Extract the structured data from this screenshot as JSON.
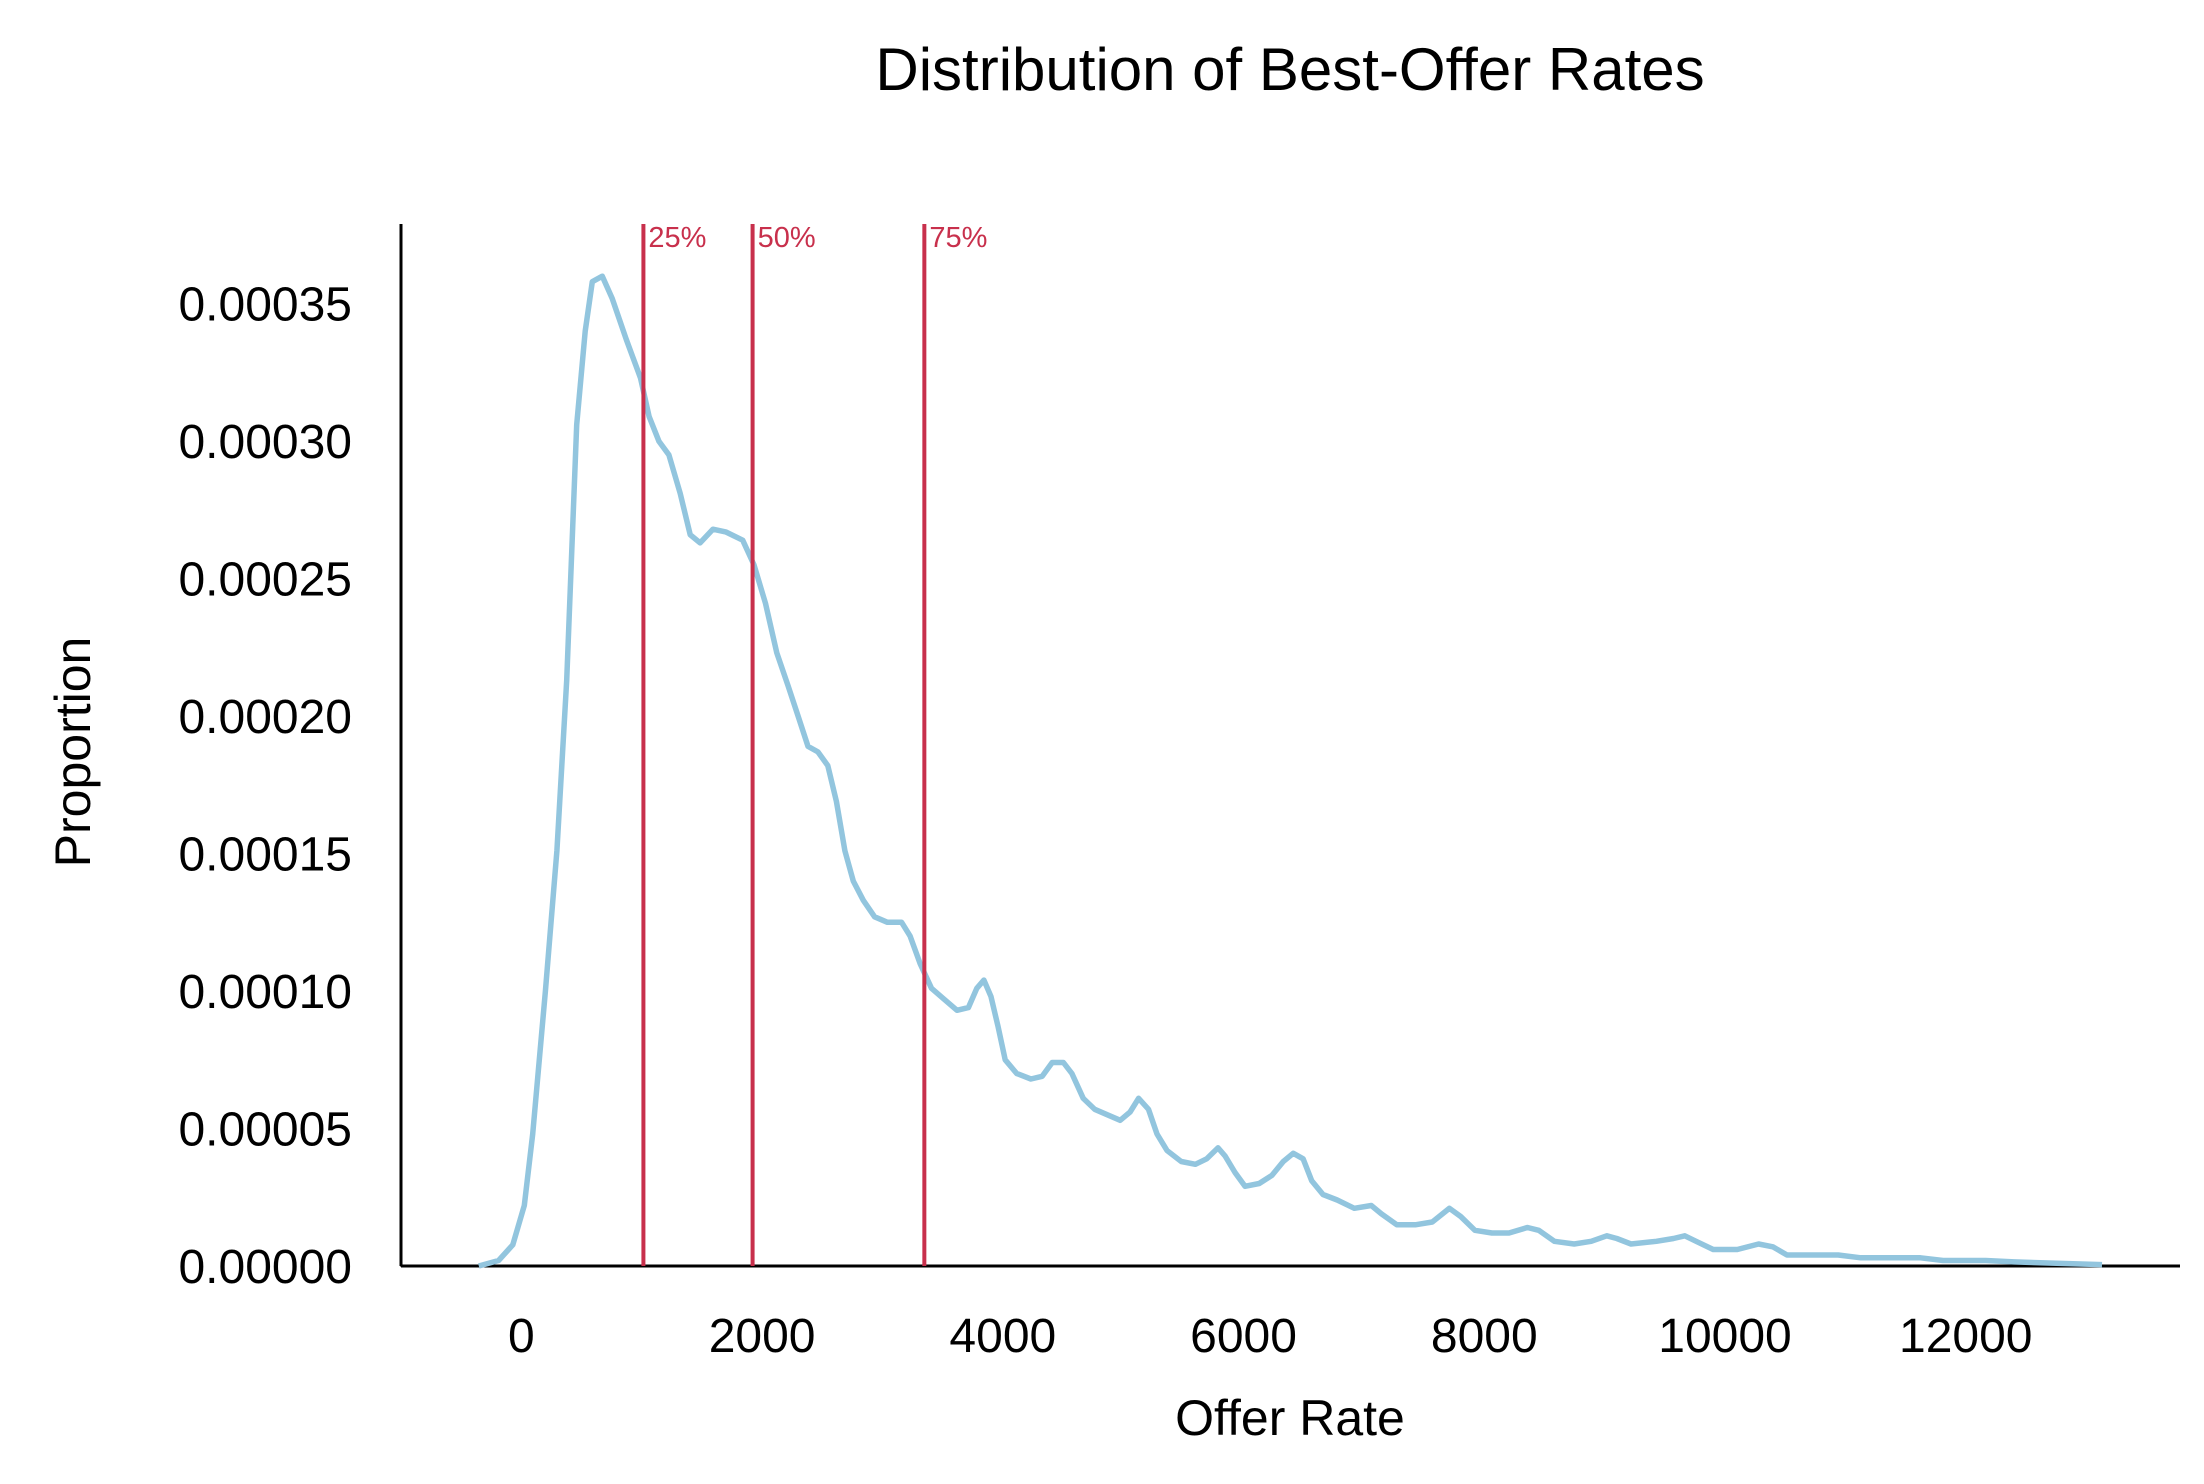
{
  "chart_data": {
    "type": "line",
    "title": "Distribution of Best-Offer Rates",
    "x_label": "Offer Rate",
    "y_label": "Proportion",
    "color": "#92c5de",
    "percentile_color": "#c8304c",
    "xlim": [
      -1000,
      13780
    ],
    "ylim": [
      0,
      0.000379
    ],
    "xticks": [
      0,
      2000,
      4000,
      6000,
      8000,
      10000,
      12000
    ],
    "yticks": [
      {
        "value": 0,
        "label": "0.00000"
      },
      {
        "value": 5e-05,
        "label": "0.00005"
      },
      {
        "value": 0.0001,
        "label": "0.00010"
      },
      {
        "value": 0.00015,
        "label": "0.00015"
      },
      {
        "value": 0.0002,
        "label": "0.00020"
      },
      {
        "value": 0.00025,
        "label": "0.00025"
      },
      {
        "value": 0.0003,
        "label": "0.00030"
      },
      {
        "value": 0.00035,
        "label": "0.00035"
      }
    ],
    "percentiles": [
      {
        "label": "25%",
        "value": 1014
      },
      {
        "label": "50%",
        "value": 1921
      },
      {
        "label": "75%",
        "value": 3348
      }
    ],
    "x": [
      -354,
      -189,
      -71,
      24,
      94,
      200,
      295,
      377,
      460,
      530,
      589,
      672,
      754,
      872,
      990,
      1061,
      1143,
      1226,
      1320,
      1403,
      1485,
      1591,
      1698,
      1839,
      1933,
      2028,
      2122,
      2216,
      2299,
      2381,
      2464,
      2546,
      2617,
      2688,
      2758,
      2841,
      2935,
      3041,
      3159,
      3230,
      3313,
      3407,
      3513,
      3619,
      3714,
      3784,
      3843,
      3902,
      3961,
      4020,
      4115,
      4233,
      4327,
      4410,
      4503,
      4574,
      4668,
      4763,
      4869,
      4975,
      5057,
      5128,
      5210,
      5281,
      5364,
      5482,
      5600,
      5694,
      5788,
      5847,
      5929,
      6012,
      6130,
      6236,
      6330,
      6413,
      6495,
      6566,
      6660,
      6778,
      6920,
      7061,
      7144,
      7273,
      7427,
      7568,
      7710,
      7804,
      7922,
      8063,
      8205,
      8358,
      8452,
      8582,
      8747,
      8888,
      9018,
      9101,
      9219,
      9430,
      9572,
      9666,
      9760,
      9902,
      10102,
      10279,
      10397,
      10515,
      10751,
      10940,
      11128,
      11458,
      11623,
      11812,
      12166,
      12401,
      12755,
      13132
    ],
    "values": [
      0,
      2e-06,
      7.7e-06,
      2.2e-05,
      4.8e-05,
      0.0001,
      0.000151,
      0.000213,
      0.000306,
      0.00034,
      0.000358,
      0.00036,
      0.000352,
      0.000337,
      0.000323,
      0.000309,
      0.0003,
      0.000295,
      0.000281,
      0.000266,
      0.000263,
      0.000268,
      0.000267,
      0.000264,
      0.000255,
      0.000241,
      0.000223,
      0.000211,
      0.0002,
      0.000189,
      0.000187,
      0.000182,
      0.000169,
      0.000151,
      0.00014,
      0.000133,
      0.000127,
      0.000125,
      0.000125,
      0.00012,
      0.00011,
      0.000101,
      9.7e-05,
      9.3e-05,
      9.4e-05,
      0.000101,
      0.000104,
      9.8e-05,
      8.7e-05,
      7.5e-05,
      7e-05,
      6.8e-05,
      6.9e-05,
      7.4e-05,
      7.4e-05,
      7e-05,
      6.1e-05,
      5.7e-05,
      5.5e-05,
      5.3e-05,
      5.6e-05,
      6.1e-05,
      5.7e-05,
      4.8e-05,
      4.2e-05,
      3.8e-05,
      3.7e-05,
      3.9e-05,
      4.3e-05,
      4e-05,
      3.4e-05,
      2.9e-05,
      3e-05,
      3.3e-05,
      3.8e-05,
      4.1e-05,
      3.9e-05,
      3.1e-05,
      2.6e-05,
      2.4e-05,
      2.1e-05,
      2.2e-05,
      1.9e-05,
      1.5e-05,
      1.5e-05,
      1.6e-05,
      2.1e-05,
      1.8e-05,
      1.3e-05,
      1.2e-05,
      1.2e-05,
      1.4e-05,
      1.3e-05,
      9e-06,
      8e-06,
      9e-06,
      1.1e-05,
      1e-05,
      8e-06,
      9e-06,
      1e-05,
      1.1e-05,
      9e-06,
      6e-06,
      6e-06,
      8e-06,
      7e-06,
      4e-06,
      4e-06,
      4e-06,
      3e-06,
      3e-06,
      3e-06,
      2e-06,
      2e-06,
      1.5e-06,
      1e-06,
      5e-07
    ]
  }
}
